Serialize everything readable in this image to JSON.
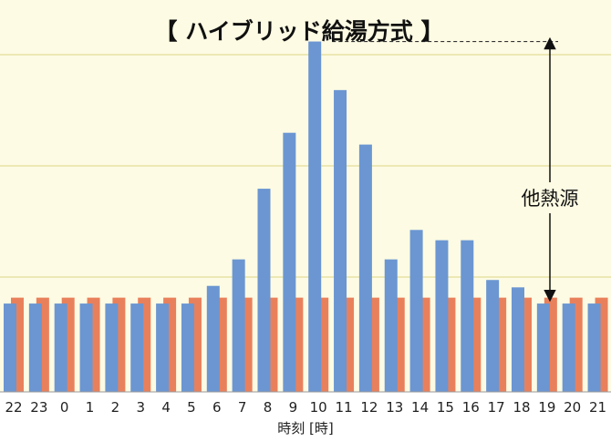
{
  "chart_data": {
    "type": "bar",
    "title": "【 ハイブリッド給湯方式 】",
    "xlabel": "時刻 [時]",
    "ylabel": "",
    "categories": [
      "22",
      "23",
      "0",
      "1",
      "2",
      "3",
      "4",
      "5",
      "6",
      "7",
      "8",
      "9",
      "10",
      "11",
      "12",
      "13",
      "14",
      "15",
      "16",
      "17",
      "18",
      "19",
      "20",
      "21"
    ],
    "ylim": [
      0,
      26
    ],
    "grid": true,
    "colors": {
      "background": "#FDFBE3",
      "grid": "#E8E2A6",
      "blue": "#6B96D2",
      "orange": "#E9805C"
    },
    "series": [
      {
        "values": [
          6.0,
          6.0,
          6.0,
          6.0,
          6.0,
          6.0,
          6.0,
          6.0,
          7.2,
          9.0,
          13.8,
          17.6,
          23.8,
          20.5,
          16.8,
          9.0,
          11.0,
          10.3,
          10.3,
          7.6,
          7.1,
          6.0,
          6.0,
          6.0
        ]
      },
      {
        "values": [
          6.4,
          6.4,
          6.4,
          6.4,
          6.4,
          6.4,
          6.4,
          6.4,
          6.4,
          6.4,
          6.4,
          6.4,
          6.4,
          6.4,
          6.4,
          6.4,
          6.4,
          6.4,
          6.4,
          6.4,
          6.4,
          6.4,
          6.4,
          6.4
        ]
      }
    ],
    "annotation": {
      "text": "他熱源"
    }
  }
}
